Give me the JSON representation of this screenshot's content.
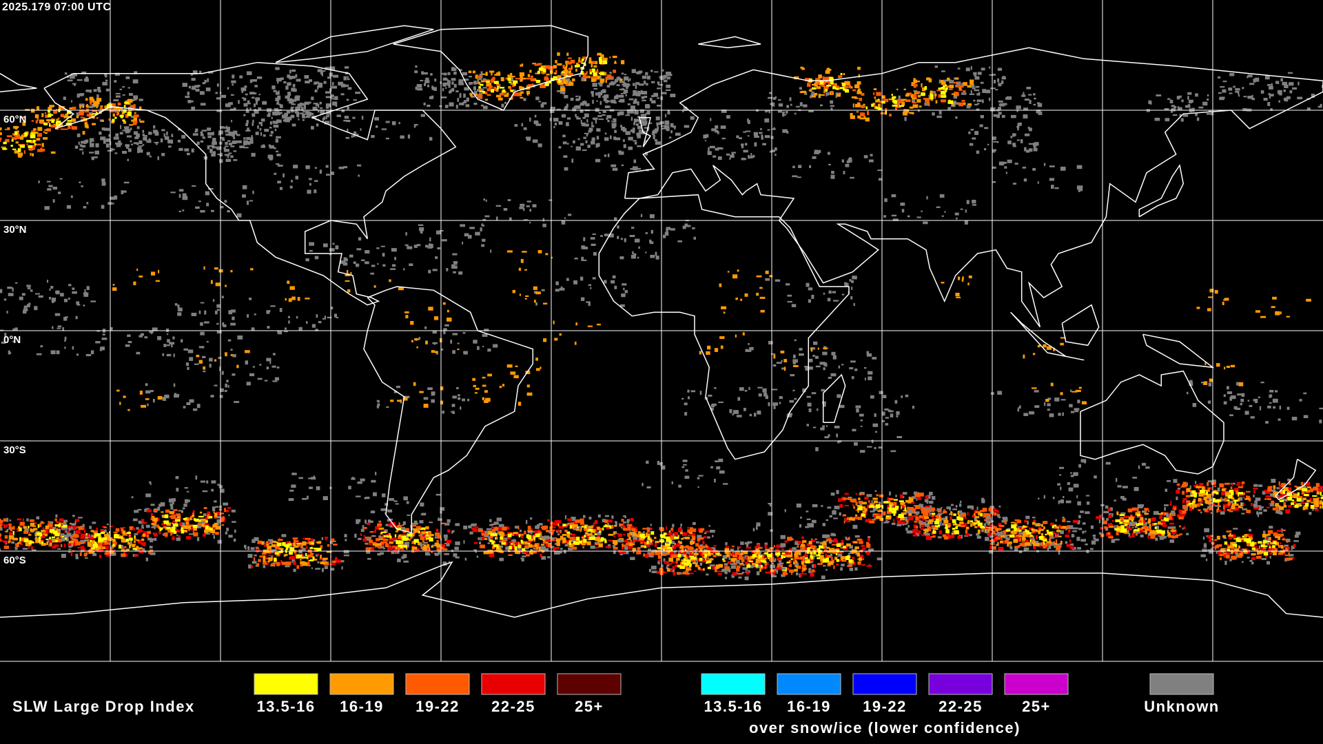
{
  "header": {
    "timestamp": "2025.179 07:00 UTC"
  },
  "map": {
    "latitude_labels": [
      "60°N",
      "30°N",
      "0°N",
      "30°S",
      "60°S"
    ]
  },
  "legend": {
    "title": "SLW Large Drop Index",
    "groups": [
      {
        "items": [
          {
            "label": "13.5-16",
            "color": "#ffff00"
          },
          {
            "label": "16-19",
            "color": "#ff9a00"
          },
          {
            "label": "19-22",
            "color": "#ff5a00"
          },
          {
            "label": "22-25",
            "color": "#e80000"
          },
          {
            "label": "25+",
            "color": "#5c0000"
          }
        ]
      },
      {
        "items": [
          {
            "label": "13.5-16",
            "color": "#00ffff"
          },
          {
            "label": "16-19",
            "color": "#0088ff"
          },
          {
            "label": "19-22",
            "color": "#0000ff"
          },
          {
            "label": "22-25",
            "color": "#7700dd"
          },
          {
            "label": "25+",
            "color": "#cc00cc"
          }
        ],
        "caption": "over snow/ice (lower confidence)"
      },
      {
        "items": [
          {
            "label": "Unknown",
            "color": "#808080"
          }
        ]
      }
    ]
  }
}
